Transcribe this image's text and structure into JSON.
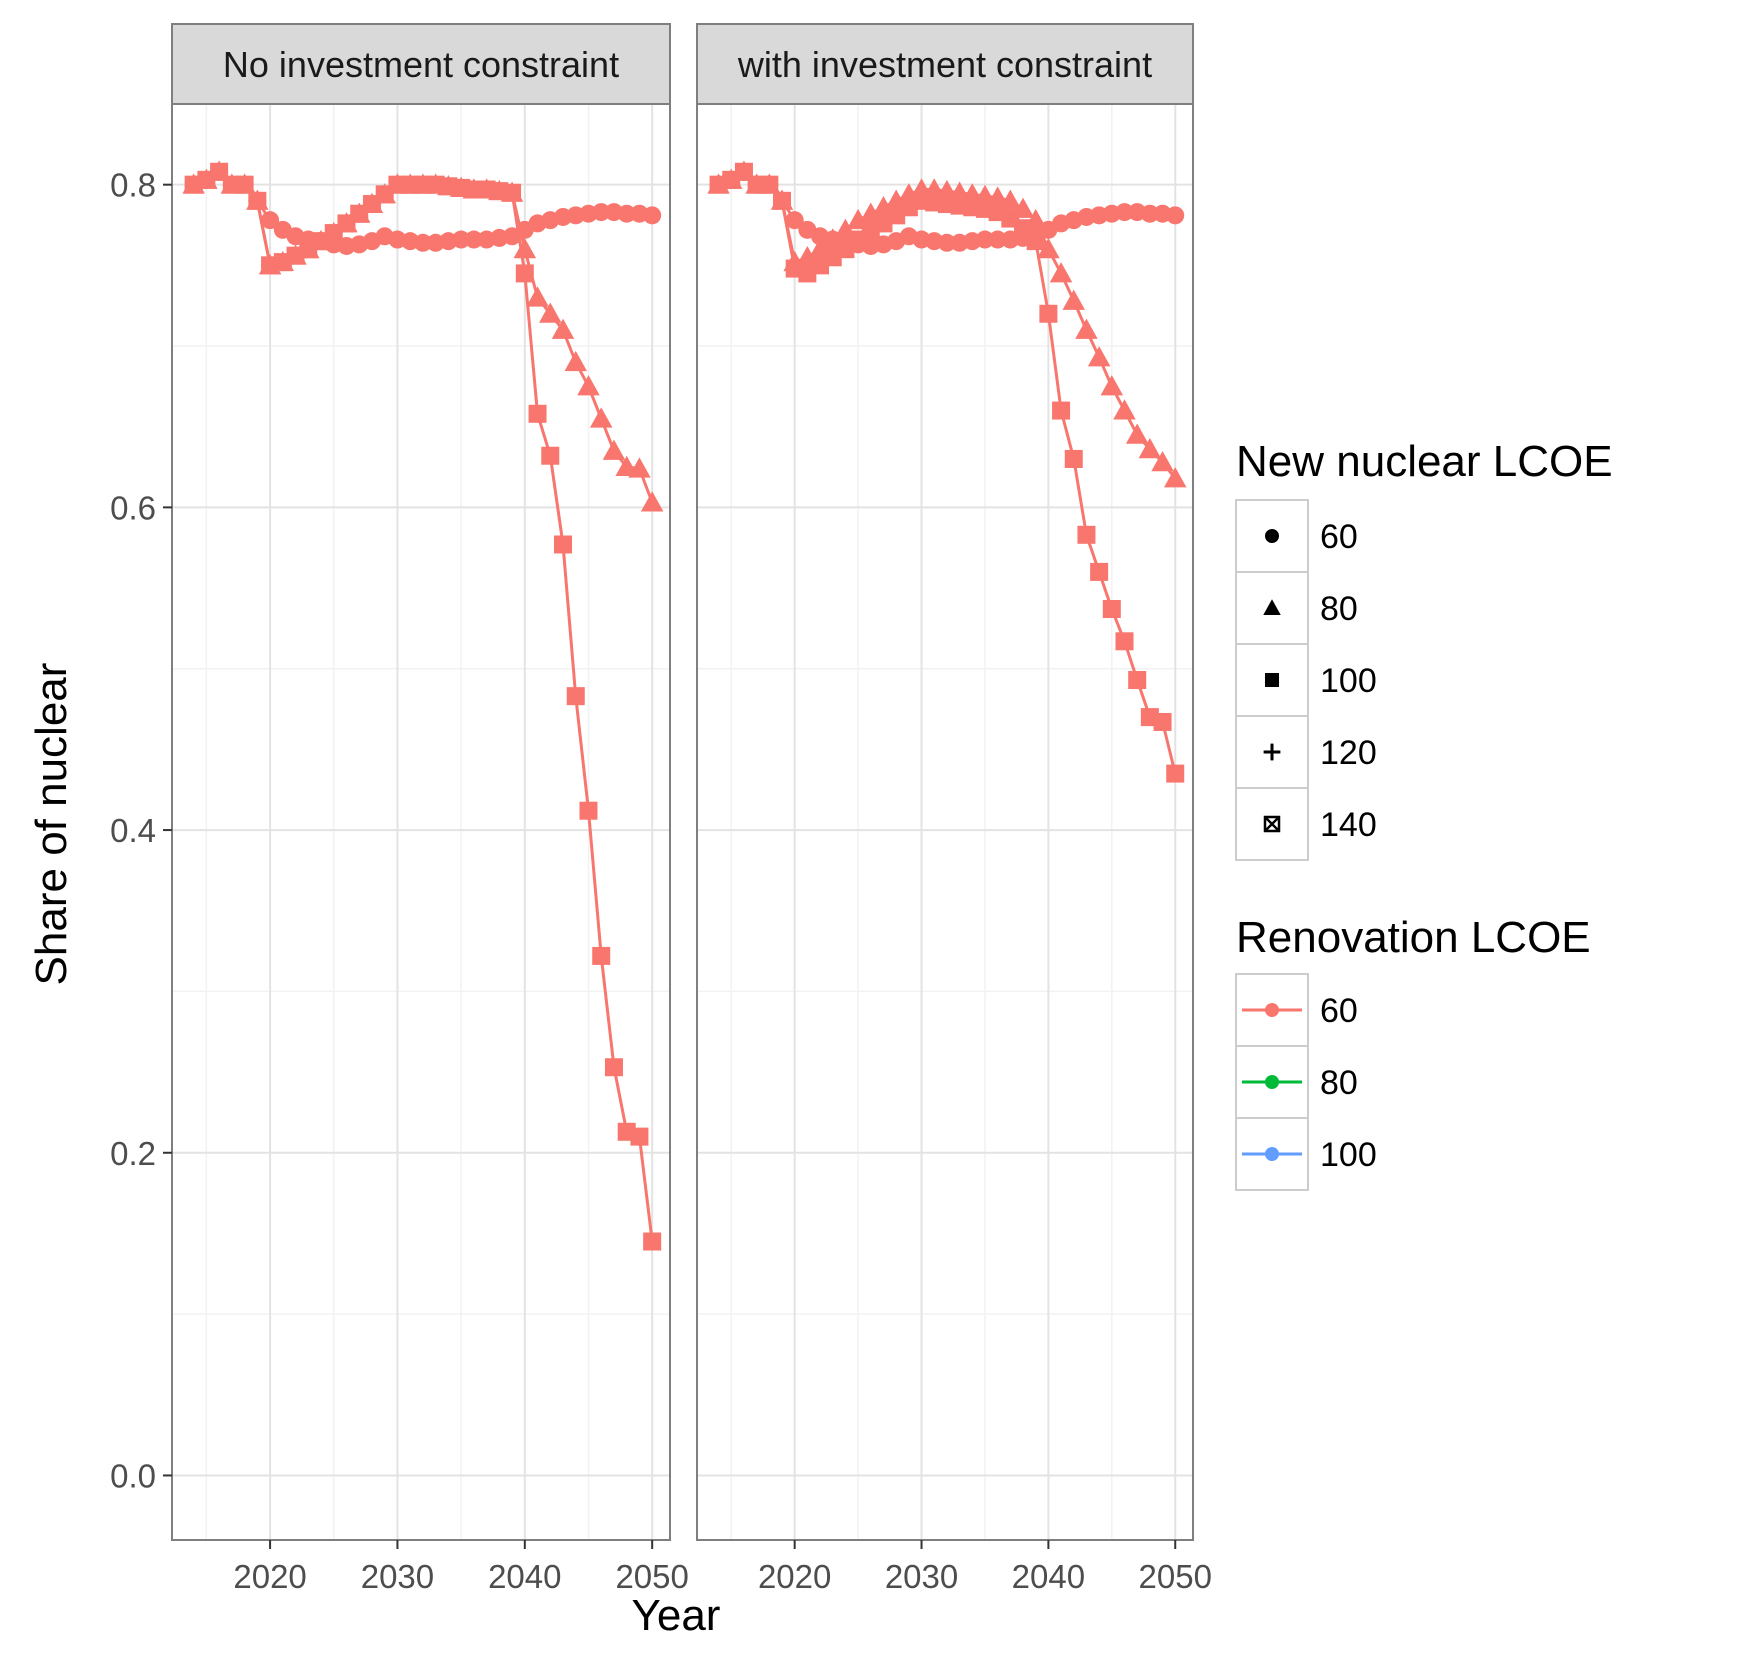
{
  "chart_data": {
    "type": "line",
    "xlabel": "Year",
    "ylabel": "Share of nuclear",
    "xlim": [
      2012.3,
      2051.4
    ],
    "ylim": [
      -0.04,
      0.85
    ],
    "x_ticks": [
      2020,
      2030,
      2040,
      2050
    ],
    "y_ticks": [
      0.0,
      0.2,
      0.4,
      0.6,
      0.8
    ],
    "y_tick_labels": [
      "0.0",
      "0.2",
      "0.4",
      "0.6",
      "0.8"
    ],
    "grid": true,
    "legend_position": "right",
    "facets": [
      "No investment constraint",
      "with investment constraint"
    ],
    "legends": {
      "shape": {
        "title": "New nuclear LCOE",
        "entries": [
          {
            "label": "60",
            "shape": "circle"
          },
          {
            "label": "80",
            "shape": "triangle"
          },
          {
            "label": "100",
            "shape": "square"
          },
          {
            "label": "120",
            "shape": "plus"
          },
          {
            "label": "140",
            "shape": "boxcross"
          }
        ]
      },
      "color": {
        "title": "Renovation LCOE",
        "entries": [
          {
            "label": "60",
            "color": "#F8766D"
          },
          {
            "label": "80",
            "color": "#00BA38"
          },
          {
            "label": "100",
            "color": "#619CFF"
          }
        ]
      }
    },
    "panels": [
      {
        "facet": "No investment constraint",
        "series": [
          {
            "renovation": "60",
            "new_nuclear": "60",
            "color": "#F8766D",
            "shape": "circle",
            "x": [
              2014,
              2015,
              2016,
              2017,
              2018,
              2019,
              2020,
              2021,
              2022,
              2023,
              2024,
              2025,
              2026,
              2027,
              2028,
              2029,
              2030,
              2031,
              2032,
              2033,
              2034,
              2035,
              2036,
              2037,
              2038,
              2039,
              2040,
              2041,
              2042,
              2043,
              2044,
              2045,
              2046,
              2047,
              2048,
              2049,
              2050
            ],
            "y": [
              0.8,
              0.803,
              0.808,
              0.8,
              0.8,
              0.79,
              0.778,
              0.772,
              0.768,
              0.766,
              0.765,
              0.763,
              0.762,
              0.763,
              0.765,
              0.768,
              0.766,
              0.765,
              0.764,
              0.764,
              0.765,
              0.766,
              0.766,
              0.766,
              0.767,
              0.768,
              0.772,
              0.776,
              0.778,
              0.78,
              0.781,
              0.782,
              0.783,
              0.783,
              0.782,
              0.782,
              0.781
            ]
          },
          {
            "renovation": "60",
            "new_nuclear": "80",
            "color": "#F8766D",
            "shape": "triangle",
            "x": [
              2014,
              2015,
              2016,
              2017,
              2018,
              2019,
              2020,
              2021,
              2022,
              2023,
              2024,
              2025,
              2026,
              2027,
              2028,
              2029,
              2030,
              2031,
              2032,
              2033,
              2034,
              2035,
              2036,
              2037,
              2038,
              2039,
              2040,
              2041,
              2042,
              2043,
              2044,
              2045,
              2046,
              2047,
              2048,
              2049,
              2050
            ],
            "y": [
              0.8,
              0.803,
              0.808,
              0.8,
              0.8,
              0.79,
              0.75,
              0.752,
              0.756,
              0.76,
              0.765,
              0.77,
              0.776,
              0.782,
              0.788,
              0.794,
              0.8,
              0.8,
              0.8,
              0.8,
              0.799,
              0.798,
              0.797,
              0.797,
              0.796,
              0.795,
              0.76,
              0.73,
              0.72,
              0.71,
              0.69,
              0.675,
              0.655,
              0.635,
              0.625,
              0.624,
              0.603
            ]
          },
          {
            "renovation": "60",
            "new_nuclear": "100",
            "color": "#F8766D",
            "shape": "square",
            "x": [
              2014,
              2015,
              2016,
              2017,
              2018,
              2019,
              2020,
              2021,
              2022,
              2023,
              2024,
              2025,
              2026,
              2027,
              2028,
              2029,
              2030,
              2031,
              2032,
              2033,
              2034,
              2035,
              2036,
              2037,
              2038,
              2039,
              2040,
              2041,
              2042,
              2043,
              2044,
              2045,
              2046,
              2047,
              2048,
              2049,
              2050
            ],
            "y": [
              0.8,
              0.803,
              0.808,
              0.8,
              0.8,
              0.79,
              0.75,
              0.752,
              0.756,
              0.76,
              0.765,
              0.77,
              0.776,
              0.782,
              0.788,
              0.794,
              0.8,
              0.8,
              0.8,
              0.8,
              0.799,
              0.798,
              0.797,
              0.797,
              0.796,
              0.795,
              0.745,
              0.658,
              0.632,
              0.577,
              0.483,
              0.412,
              0.322,
              0.253,
              0.213,
              0.21,
              0.145
            ]
          }
        ]
      },
      {
        "facet": "with investment constraint",
        "series": [
          {
            "renovation": "60",
            "new_nuclear": "60",
            "color": "#F8766D",
            "shape": "circle",
            "x": [
              2014,
              2015,
              2016,
              2017,
              2018,
              2019,
              2020,
              2021,
              2022,
              2023,
              2024,
              2025,
              2026,
              2027,
              2028,
              2029,
              2030,
              2031,
              2032,
              2033,
              2034,
              2035,
              2036,
              2037,
              2038,
              2039,
              2040,
              2041,
              2042,
              2043,
              2044,
              2045,
              2046,
              2047,
              2048,
              2049,
              2050
            ],
            "y": [
              0.8,
              0.803,
              0.808,
              0.8,
              0.8,
              0.79,
              0.778,
              0.772,
              0.768,
              0.766,
              0.765,
              0.763,
              0.762,
              0.763,
              0.765,
              0.768,
              0.766,
              0.765,
              0.764,
              0.764,
              0.765,
              0.766,
              0.766,
              0.766,
              0.767,
              0.768,
              0.772,
              0.776,
              0.778,
              0.78,
              0.781,
              0.782,
              0.783,
              0.783,
              0.782,
              0.782,
              0.781
            ]
          },
          {
            "renovation": "60",
            "new_nuclear": "80",
            "color": "#F8766D",
            "shape": "triangle",
            "x": [
              2014,
              2015,
              2016,
              2017,
              2018,
              2019,
              2020,
              2021,
              2022,
              2023,
              2024,
              2025,
              2026,
              2027,
              2028,
              2029,
              2030,
              2031,
              2032,
              2033,
              2034,
              2035,
              2036,
              2037,
              2038,
              2039,
              2040,
              2041,
              2042,
              2043,
              2044,
              2045,
              2046,
              2047,
              2048,
              2049,
              2050
            ],
            "y": [
              0.8,
              0.803,
              0.808,
              0.8,
              0.8,
              0.79,
              0.752,
              0.755,
              0.76,
              0.766,
              0.772,
              0.778,
              0.782,
              0.786,
              0.79,
              0.794,
              0.797,
              0.797,
              0.796,
              0.795,
              0.794,
              0.793,
              0.792,
              0.79,
              0.785,
              0.778,
              0.76,
              0.745,
              0.728,
              0.71,
              0.693,
              0.675,
              0.66,
              0.645,
              0.636,
              0.628,
              0.618
            ]
          },
          {
            "renovation": "60",
            "new_nuclear": "100",
            "color": "#F8766D",
            "shape": "square",
            "x": [
              2014,
              2015,
              2016,
              2017,
              2018,
              2019,
              2020,
              2021,
              2022,
              2023,
              2024,
              2025,
              2026,
              2027,
              2028,
              2029,
              2030,
              2031,
              2032,
              2033,
              2034,
              2035,
              2036,
              2037,
              2038,
              2039,
              2040,
              2041,
              2042,
              2043,
              2044,
              2045,
              2046,
              2047,
              2048,
              2049,
              2050
            ],
            "y": [
              0.8,
              0.803,
              0.808,
              0.8,
              0.8,
              0.79,
              0.748,
              0.745,
              0.75,
              0.755,
              0.76,
              0.766,
              0.771,
              0.776,
              0.781,
              0.786,
              0.79,
              0.789,
              0.788,
              0.787,
              0.786,
              0.785,
              0.783,
              0.779,
              0.773,
              0.765,
              0.72,
              0.66,
              0.63,
              0.583,
              0.56,
              0.537,
              0.517,
              0.493,
              0.47,
              0.467,
              0.435
            ]
          }
        ]
      }
    ]
  }
}
